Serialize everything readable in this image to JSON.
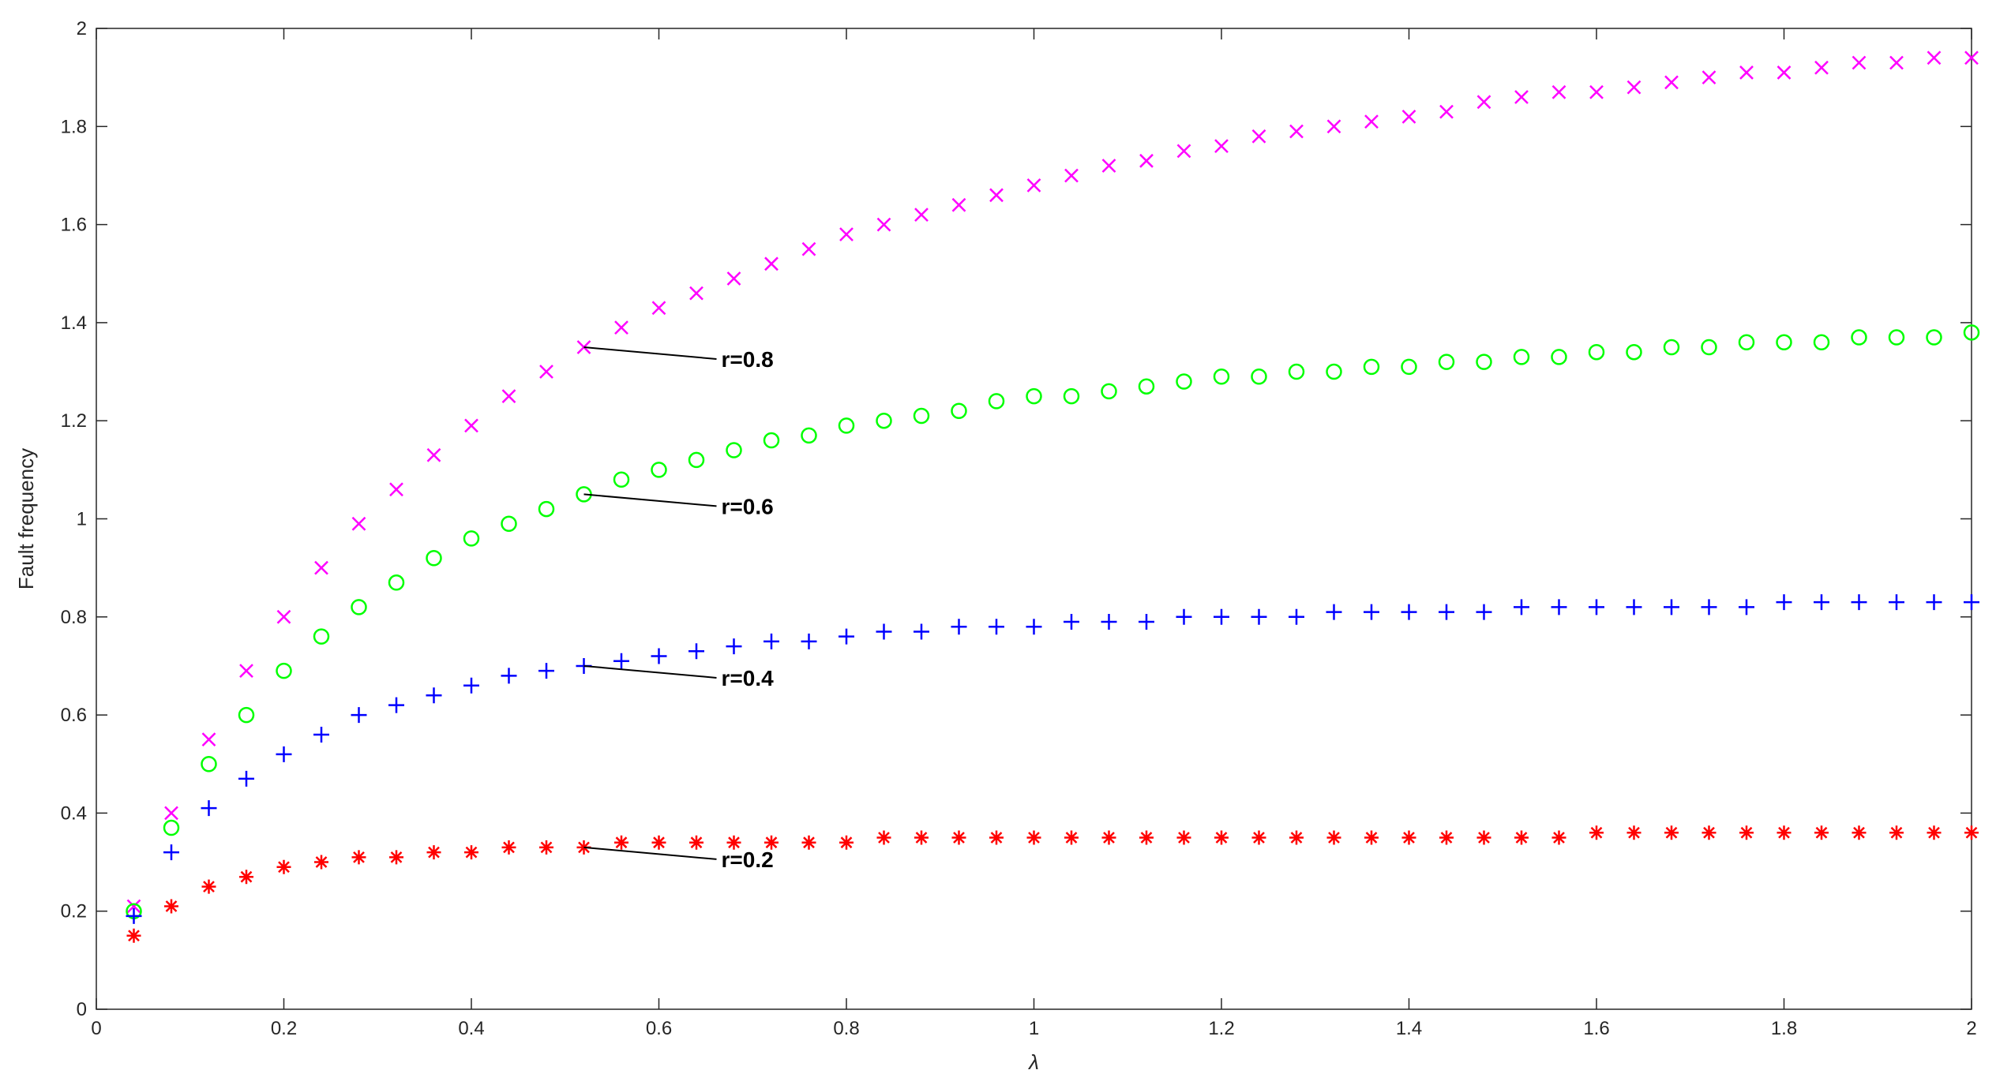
{
  "chart_data": {
    "type": "scatter",
    "xlabel": "λ",
    "ylabel": "Fault frequency",
    "xlim": [
      0,
      2
    ],
    "ylim": [
      0,
      2
    ],
    "grid": false,
    "xticks": [
      "0",
      "0.2",
      "0.4",
      "0.6",
      "0.8",
      "1",
      "1.2",
      "1.4",
      "1.6",
      "1.8",
      "2"
    ],
    "yticks": [
      "0",
      "0.2",
      "0.4",
      "0.6",
      "0.8",
      "1",
      "1.2",
      "1.4",
      "1.6",
      "1.8",
      "2"
    ],
    "x": [
      0.04,
      0.08,
      0.12,
      0.16,
      0.2,
      0.24,
      0.28,
      0.32,
      0.36,
      0.4,
      0.44,
      0.48,
      0.52,
      0.56,
      0.6,
      0.64,
      0.68,
      0.72,
      0.76,
      0.8,
      0.84,
      0.88,
      0.92,
      0.96,
      1.0,
      1.04,
      1.08,
      1.12,
      1.16,
      1.2,
      1.24,
      1.28,
      1.32,
      1.36,
      1.4,
      1.44,
      1.48,
      1.52,
      1.56,
      1.6,
      1.64,
      1.68,
      1.72,
      1.76,
      1.8,
      1.84,
      1.88,
      1.92,
      1.96,
      2.0
    ],
    "series": [
      {
        "marker": "x",
        "color": "#ff00ff",
        "values": [
          0.21,
          0.4,
          0.55,
          0.69,
          0.8,
          0.9,
          0.99,
          1.06,
          1.13,
          1.19,
          1.25,
          1.3,
          1.35,
          1.39,
          1.43,
          1.46,
          1.49,
          1.52,
          1.55,
          1.58,
          1.6,
          1.62,
          1.64,
          1.66,
          1.68,
          1.7,
          1.72,
          1.73,
          1.75,
          1.76,
          1.78,
          1.79,
          1.8,
          1.81,
          1.82,
          1.83,
          1.85,
          1.86,
          1.87,
          1.87,
          1.88,
          1.89,
          1.9,
          1.91,
          1.91,
          1.92,
          1.93,
          1.93,
          1.94,
          1.94
        ]
      },
      {
        "marker": "o",
        "color": "#00ff00",
        "values": [
          0.2,
          0.37,
          0.5,
          0.6,
          0.69,
          0.76,
          0.82,
          0.87,
          0.92,
          0.96,
          0.99,
          1.02,
          1.05,
          1.08,
          1.1,
          1.12,
          1.14,
          1.16,
          1.17,
          1.19,
          1.2,
          1.21,
          1.22,
          1.24,
          1.25,
          1.25,
          1.26,
          1.27,
          1.28,
          1.29,
          1.29,
          1.3,
          1.3,
          1.31,
          1.31,
          1.32,
          1.32,
          1.33,
          1.33,
          1.34,
          1.34,
          1.35,
          1.35,
          1.36,
          1.36,
          1.36,
          1.37,
          1.37,
          1.37,
          1.38
        ]
      },
      {
        "marker": "+",
        "color": "#0000ff",
        "values": [
          0.19,
          0.32,
          0.41,
          0.47,
          0.52,
          0.56,
          0.6,
          0.62,
          0.64,
          0.66,
          0.68,
          0.69,
          0.7,
          0.71,
          0.72,
          0.73,
          0.74,
          0.75,
          0.75,
          0.76,
          0.77,
          0.77,
          0.78,
          0.78,
          0.78,
          0.79,
          0.79,
          0.79,
          0.8,
          0.8,
          0.8,
          0.8,
          0.81,
          0.81,
          0.81,
          0.81,
          0.81,
          0.82,
          0.82,
          0.82,
          0.82,
          0.82,
          0.82,
          0.82,
          0.83,
          0.83,
          0.83,
          0.83,
          0.83,
          0.83
        ]
      },
      {
        "marker": "*",
        "color": "#ff0000",
        "values": [
          0.15,
          0.21,
          0.25,
          0.27,
          0.29,
          0.3,
          0.31,
          0.31,
          0.32,
          0.32,
          0.33,
          0.33,
          0.33,
          0.34,
          0.34,
          0.34,
          0.34,
          0.34,
          0.34,
          0.34,
          0.35,
          0.35,
          0.35,
          0.35,
          0.35,
          0.35,
          0.35,
          0.35,
          0.35,
          0.35,
          0.35,
          0.35,
          0.35,
          0.35,
          0.35,
          0.35,
          0.35,
          0.35,
          0.35,
          0.36,
          0.36,
          0.36,
          0.36,
          0.36,
          0.36,
          0.36,
          0.36,
          0.36,
          0.36,
          0.36
        ]
      }
    ],
    "annotations": [
      {
        "text": "r=0.8",
        "x": 0.52,
        "y": 1.35
      },
      {
        "text": "r=0.6",
        "x": 0.52,
        "y": 1.05
      },
      {
        "text": "r=0.4",
        "x": 0.52,
        "y": 0.7
      },
      {
        "text": "r=0.2",
        "x": 0.52,
        "y": 0.33
      }
    ]
  }
}
